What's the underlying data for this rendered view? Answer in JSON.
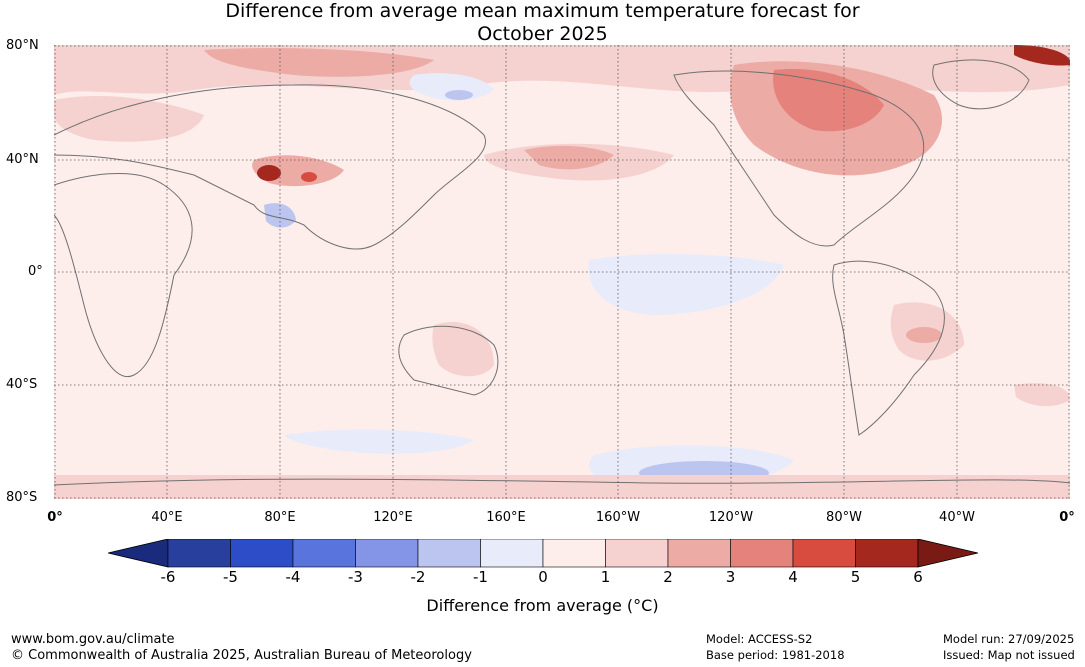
{
  "title": {
    "line1": "Difference from average mean maximum temperature forecast for",
    "line2": "October 2025"
  },
  "latitude_labels": [
    "80°N",
    "40°N",
    "0°",
    "40°S",
    "80°S"
  ],
  "longitude_labels": [
    "0°",
    "40°E",
    "80°E",
    "120°E",
    "160°E",
    "160°W",
    "120°W",
    "80°W",
    "40°W",
    "0°"
  ],
  "colorbar": {
    "ticks": [
      "-6",
      "-5",
      "-4",
      "-3",
      "-2",
      "-1",
      "0",
      "1",
      "2",
      "3",
      "4",
      "5",
      "6"
    ],
    "colors": [
      "#283f9e",
      "#2d4cc8",
      "#5a74de",
      "#8494e6",
      "#bcc4f0",
      "#e8ecfa",
      "#fdeeec",
      "#f5d2cf",
      "#edaba6",
      "#e5827b",
      "#d84c40",
      "#a5281f"
    ],
    "low_extend_color": "#1a2a7c",
    "high_extend_color": "#7a1a14",
    "label": "Difference from average (°C)"
  },
  "footer": {
    "website": "www.bom.gov.au/climate",
    "copyright": "© Commonwealth of Australia 2025, Australian Bureau of Meteorology",
    "model": "Model: ACCESS-S2",
    "base_period": "Base period: 1981-2018",
    "model_run": "Model run: 27/09/2025",
    "issued": "Issued: Map not issued"
  }
}
